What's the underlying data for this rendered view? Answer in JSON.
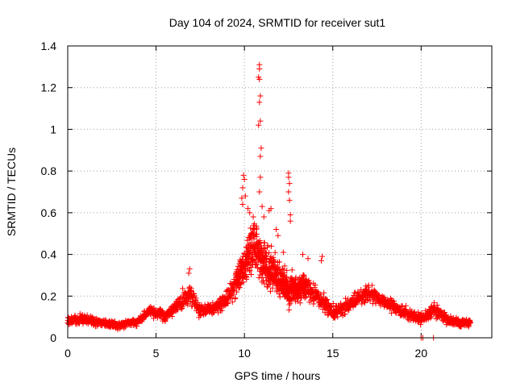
{
  "chart_data": {
    "type": "scatter",
    "title": "Day 104 of 2024, SRMTID for receiver sut1",
    "xlabel": "GPS time / hours",
    "ylabel": "SRMTID / TECUs",
    "xlim": [
      0,
      24
    ],
    "ylim": [
      0,
      1.4
    ],
    "xticks": [
      0,
      5,
      10,
      15,
      20
    ],
    "yticks": [
      0,
      0.2,
      0.4,
      0.6,
      0.8,
      1,
      1.2,
      1.4
    ],
    "xtick_labels": [
      "0",
      "5",
      "10",
      "15",
      "20"
    ],
    "ytick_labels": [
      "0",
      "0.2",
      "0.4",
      "0.6",
      "0.8",
      "1",
      "1.2",
      "1.4"
    ],
    "grid": true,
    "marker": "plus",
    "series": [
      {
        "name": "sut1",
        "color": "#ff0000",
        "x_range": [
          0,
          22.8
        ],
        "trend": [
          {
            "x": 0.0,
            "y": 0.08,
            "spread": 0.04
          },
          {
            "x": 1.0,
            "y": 0.09,
            "spread": 0.04
          },
          {
            "x": 2.0,
            "y": 0.07,
            "spread": 0.03
          },
          {
            "x": 3.0,
            "y": 0.06,
            "spread": 0.03
          },
          {
            "x": 4.0,
            "y": 0.08,
            "spread": 0.03
          },
          {
            "x": 4.6,
            "y": 0.13,
            "spread": 0.04
          },
          {
            "x": 5.5,
            "y": 0.1,
            "spread": 0.05
          },
          {
            "x": 6.4,
            "y": 0.17,
            "spread": 0.06
          },
          {
            "x": 6.9,
            "y": 0.22,
            "spread": 0.08
          },
          {
            "x": 7.5,
            "y": 0.13,
            "spread": 0.05
          },
          {
            "x": 8.5,
            "y": 0.15,
            "spread": 0.06
          },
          {
            "x": 9.3,
            "y": 0.22,
            "spread": 0.08
          },
          {
            "x": 10.0,
            "y": 0.35,
            "spread": 0.15
          },
          {
            "x": 10.5,
            "y": 0.45,
            "spread": 0.18
          },
          {
            "x": 11.2,
            "y": 0.35,
            "spread": 0.18
          },
          {
            "x": 11.8,
            "y": 0.3,
            "spread": 0.15
          },
          {
            "x": 12.5,
            "y": 0.22,
            "spread": 0.12
          },
          {
            "x": 13.5,
            "y": 0.25,
            "spread": 0.1
          },
          {
            "x": 14.3,
            "y": 0.18,
            "spread": 0.08
          },
          {
            "x": 15.0,
            "y": 0.12,
            "spread": 0.06
          },
          {
            "x": 16.0,
            "y": 0.16,
            "spread": 0.06
          },
          {
            "x": 17.0,
            "y": 0.22,
            "spread": 0.06
          },
          {
            "x": 18.0,
            "y": 0.17,
            "spread": 0.05
          },
          {
            "x": 19.0,
            "y": 0.12,
            "spread": 0.05
          },
          {
            "x": 20.0,
            "y": 0.09,
            "spread": 0.05
          },
          {
            "x": 20.8,
            "y": 0.14,
            "spread": 0.06
          },
          {
            "x": 21.5,
            "y": 0.08,
            "spread": 0.04
          },
          {
            "x": 22.8,
            "y": 0.07,
            "spread": 0.03
          }
        ],
        "outliers": [
          {
            "x": 10.85,
            "y": 1.31
          },
          {
            "x": 10.85,
            "y": 1.29
          },
          {
            "x": 10.8,
            "y": 1.25
          },
          {
            "x": 10.85,
            "y": 1.24
          },
          {
            "x": 10.9,
            "y": 1.16
          },
          {
            "x": 10.85,
            "y": 1.13
          },
          {
            "x": 10.9,
            "y": 1.04
          },
          {
            "x": 10.8,
            "y": 1.02
          },
          {
            "x": 10.95,
            "y": 0.91
          },
          {
            "x": 10.9,
            "y": 0.87
          },
          {
            "x": 10.9,
            "y": 0.77
          },
          {
            "x": 10.85,
            "y": 0.7
          },
          {
            "x": 9.95,
            "y": 0.78
          },
          {
            "x": 10.0,
            "y": 0.76
          },
          {
            "x": 9.9,
            "y": 0.72
          },
          {
            "x": 10.05,
            "y": 0.68
          },
          {
            "x": 9.85,
            "y": 0.67
          },
          {
            "x": 9.9,
            "y": 0.64
          },
          {
            "x": 10.2,
            "y": 0.62
          },
          {
            "x": 10.3,
            "y": 0.6
          },
          {
            "x": 10.5,
            "y": 0.58
          },
          {
            "x": 11.0,
            "y": 0.63
          },
          {
            "x": 11.1,
            "y": 0.58
          },
          {
            "x": 11.5,
            "y": 0.62
          },
          {
            "x": 11.4,
            "y": 0.61
          },
          {
            "x": 11.8,
            "y": 0.52
          },
          {
            "x": 11.9,
            "y": 0.49
          },
          {
            "x": 12.5,
            "y": 0.79
          },
          {
            "x": 12.5,
            "y": 0.77
          },
          {
            "x": 12.55,
            "y": 0.74
          },
          {
            "x": 12.5,
            "y": 0.7
          },
          {
            "x": 12.55,
            "y": 0.66
          },
          {
            "x": 12.6,
            "y": 0.59
          },
          {
            "x": 12.6,
            "y": 0.56
          },
          {
            "x": 12.2,
            "y": 0.41
          },
          {
            "x": 13.3,
            "y": 0.4
          },
          {
            "x": 14.4,
            "y": 0.39
          },
          {
            "x": 14.35,
            "y": 0.37
          },
          {
            "x": 13.6,
            "y": 0.38
          },
          {
            "x": 6.9,
            "y": 0.33
          },
          {
            "x": 6.85,
            "y": 0.31
          },
          {
            "x": 20.0,
            "y": 0.0
          },
          {
            "x": 20.1,
            "y": 0.0
          },
          {
            "x": 20.7,
            "y": 0.0
          }
        ]
      }
    ]
  }
}
